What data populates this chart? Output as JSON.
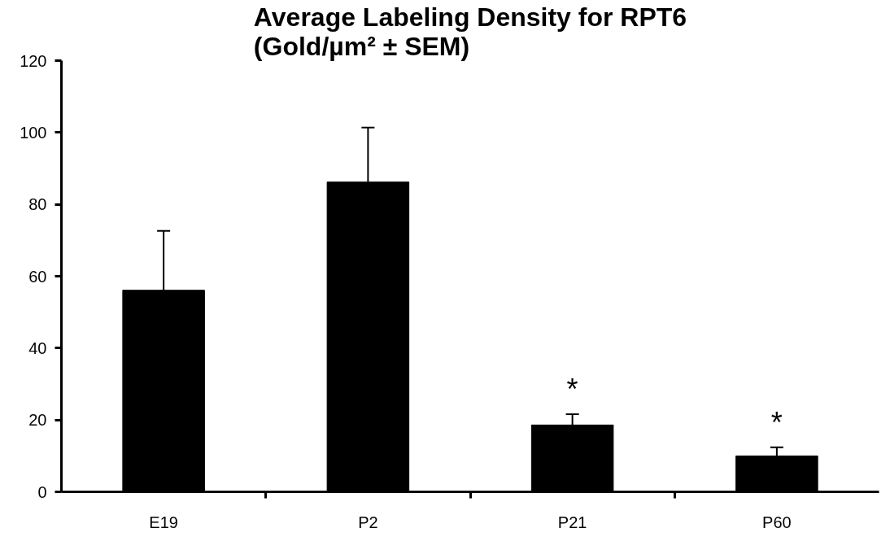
{
  "chart_data": {
    "type": "bar",
    "title": "Average Labeling Density for RPT6\n(Gold/µm² ± SEM)",
    "categories": [
      "E19",
      "P2",
      "P21",
      "P60"
    ],
    "values": [
      56.1,
      86.2,
      18.6,
      10.0
    ],
    "errors": [
      [
        56.1,
        72.6
      ],
      [
        86.2,
        101.4
      ],
      [
        18.6,
        21.6
      ],
      [
        10.0,
        12.4
      ]
    ],
    "color": "#000000",
    "ylim": [
      0,
      120
    ],
    "yticks": [
      0,
      20,
      40,
      60,
      80,
      100,
      120
    ],
    "grid": false,
    "annotations": [
      "*",
      "*"
    ]
  }
}
